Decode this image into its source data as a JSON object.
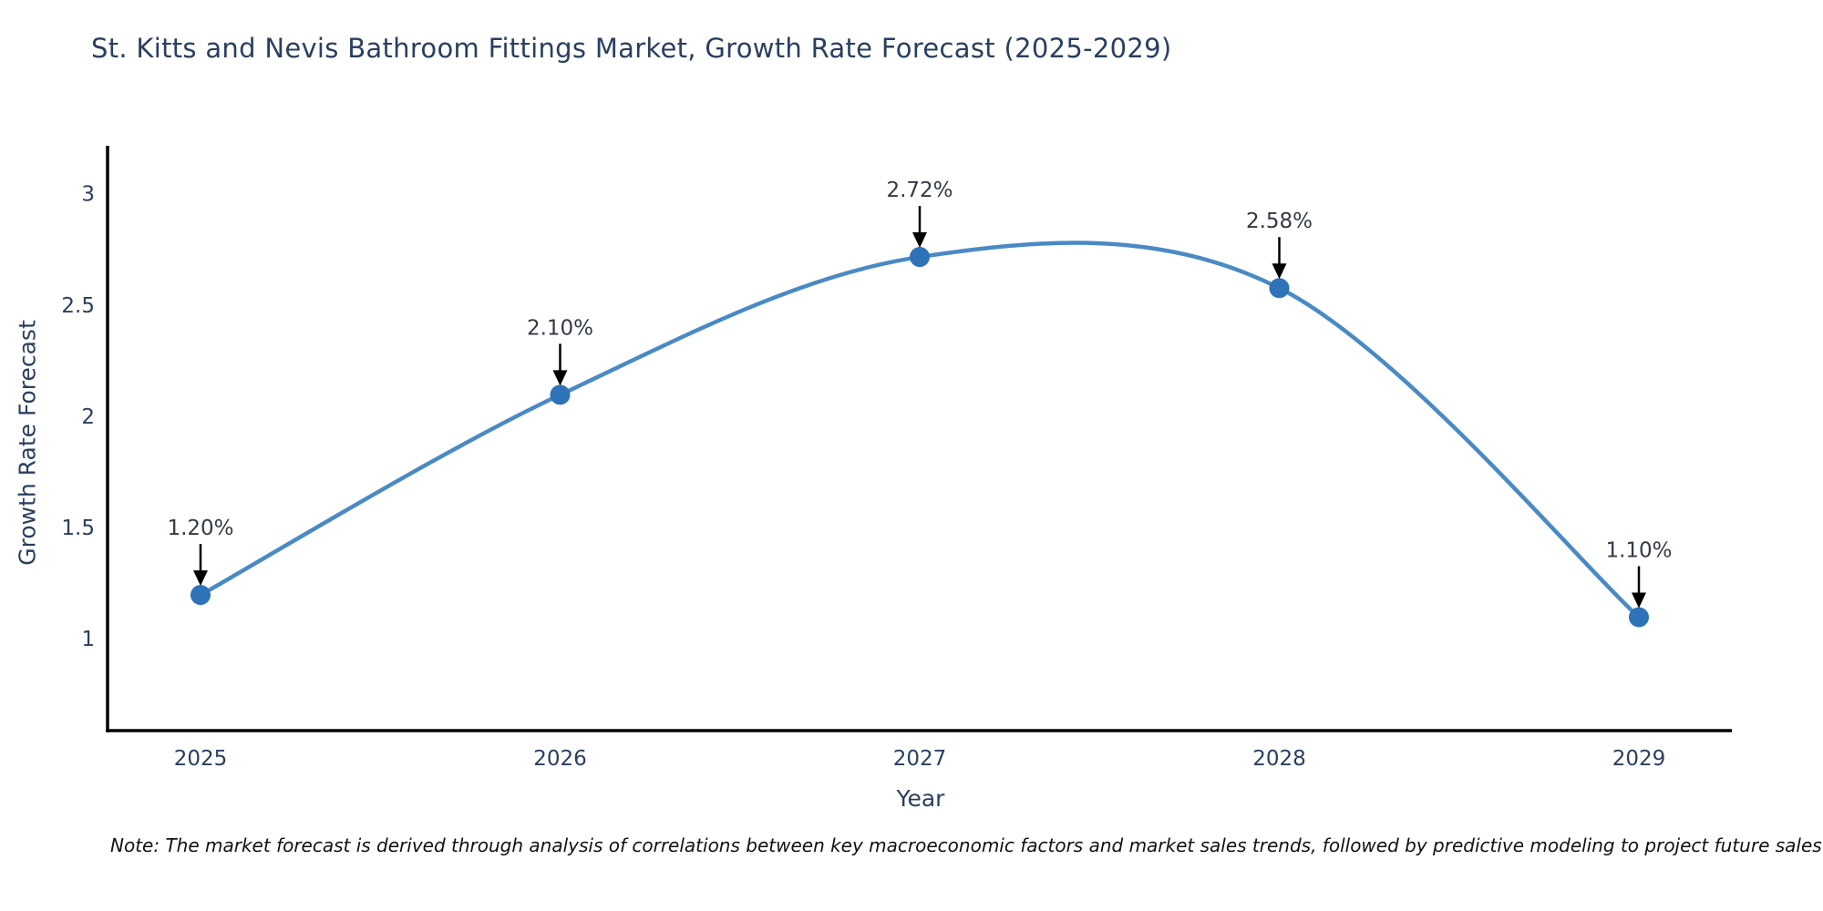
{
  "title": "St. Kitts and Nevis Bathroom Fittings Market, Growth Rate Forecast (2025-2029)",
  "note": "Note: The market forecast is derived through analysis of correlations between key macroeconomic factors and market sales trends, followed by predictive modeling to project future sales",
  "chart_data": {
    "type": "line",
    "title": "St. Kitts and Nevis Bathroom Fittings Market, Growth Rate Forecast (2025-2029)",
    "xlabel": "Year",
    "ylabel": "Growth Rate Forecast",
    "x": [
      2025,
      2026,
      2027,
      2028,
      2029
    ],
    "xticklabels": [
      "2025",
      "2026",
      "2027",
      "2028",
      "2029"
    ],
    "series": [
      {
        "name": "Growth Rate Forecast",
        "values": [
          1.2,
          2.1,
          2.72,
          2.58,
          1.1
        ]
      }
    ],
    "point_labels": [
      "1.20%",
      "2.10%",
      "2.72%",
      "2.58%",
      "1.10%"
    ],
    "yticks": [
      1,
      1.5,
      2,
      2.5,
      3
    ],
    "ylim": [
      0.59,
      3.22
    ],
    "line_shape": "spline",
    "grid": false,
    "legend_position": "none",
    "colors": {
      "line": "#4a8ac4",
      "marker": "#2e72b8",
      "arrow": "#000000",
      "annotation": "#333a45",
      "axis": "#000000",
      "tick_label": "#2a3f5f"
    }
  }
}
